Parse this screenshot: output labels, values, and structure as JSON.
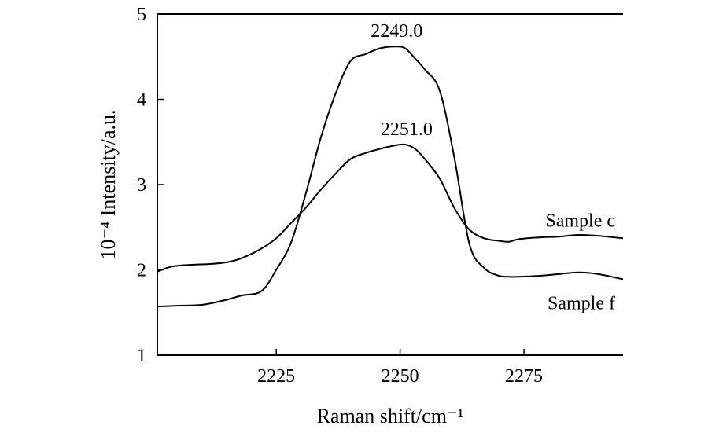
{
  "chart_data": {
    "type": "line",
    "xlabel": "Raman shift/cm⁻¹",
    "ylabel": "10⁻⁴ Intensity/a.u.",
    "xlim": [
      2201,
      2295
    ],
    "ylim": [
      1,
      5
    ],
    "x_ticks": [
      2225,
      2250,
      2275
    ],
    "y_ticks": [
      1,
      2,
      3,
      4,
      5
    ],
    "grid": false,
    "series": [
      {
        "name": "Sample f",
        "x": [
          2201,
          2205,
          2210,
          2215,
          2218,
          2222,
          2225,
          2228,
          2231,
          2234,
          2237,
          2240,
          2243,
          2246,
          2249,
          2251,
          2253,
          2255,
          2258,
          2261,
          2264,
          2267,
          2270,
          2272,
          2274,
          2278,
          2282,
          2286,
          2290,
          2295
        ],
        "y": [
          1.57,
          1.58,
          1.59,
          1.65,
          1.7,
          1.75,
          2.0,
          2.32,
          2.9,
          3.55,
          4.07,
          4.45,
          4.53,
          4.6,
          4.62,
          4.6,
          4.48,
          4.35,
          4.1,
          3.3,
          2.3,
          2.02,
          1.93,
          1.92,
          1.92,
          1.93,
          1.95,
          1.97,
          1.95,
          1.89
        ]
      },
      {
        "name": "Sample c",
        "x": [
          2201,
          2204,
          2208,
          2212,
          2216,
          2219,
          2222,
          2225,
          2228,
          2231,
          2234,
          2237,
          2240,
          2243,
          2246,
          2249,
          2251,
          2253,
          2255,
          2258,
          2261,
          2264,
          2267,
          2270,
          2272,
          2274,
          2278,
          2282,
          2286,
          2290,
          2295
        ],
        "y": [
          1.98,
          2.04,
          2.06,
          2.07,
          2.1,
          2.16,
          2.25,
          2.37,
          2.55,
          2.73,
          2.94,
          3.13,
          3.3,
          3.37,
          3.42,
          3.46,
          3.47,
          3.42,
          3.3,
          3.07,
          2.72,
          2.47,
          2.37,
          2.34,
          2.33,
          2.36,
          2.38,
          2.39,
          2.41,
          2.4,
          2.37
        ]
      }
    ],
    "annotations": [
      {
        "text": "2249.0",
        "x": 2249,
        "y": 4.62
      },
      {
        "text": "2251.0",
        "x": 2251,
        "y": 3.47
      }
    ]
  }
}
